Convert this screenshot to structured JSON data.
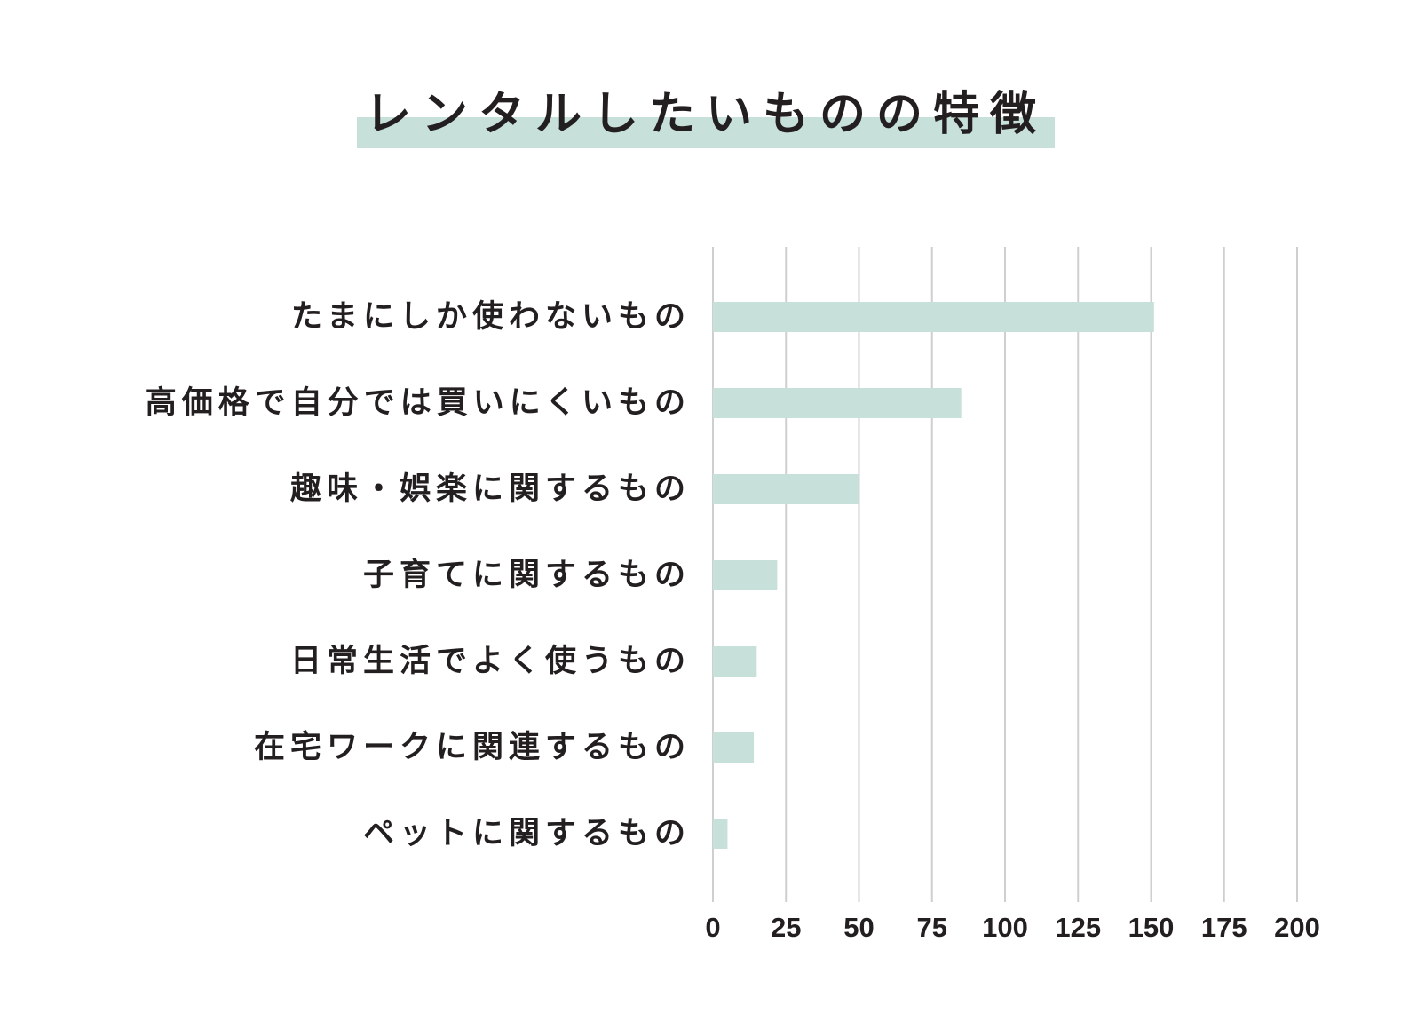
{
  "colors": {
    "bar": "#c7e0d9",
    "grid": "#cfcfcf",
    "text": "#231f20",
    "title_band": "#c7e0d9"
  },
  "chart_data": {
    "type": "bar",
    "orientation": "horizontal",
    "title": "レンタルしたいものの特徴",
    "xlabel": "",
    "ylabel": "",
    "categories": [
      "たまにしか使わないもの",
      "高価格で自分では買いにくいもの",
      "趣味・娯楽に関するもの",
      "子育てに関するもの",
      "日常生活でよく使うもの",
      "在宅ワークに関連するもの",
      "ペットに関するもの"
    ],
    "values": [
      151,
      85,
      50,
      22,
      15,
      14,
      5
    ],
    "xlim": [
      0,
      200
    ],
    "xticks": [
      "0",
      "25",
      "50",
      "75",
      "100",
      "125",
      "150",
      "175",
      "200"
    ],
    "grid": "vertical",
    "legend": "none"
  }
}
